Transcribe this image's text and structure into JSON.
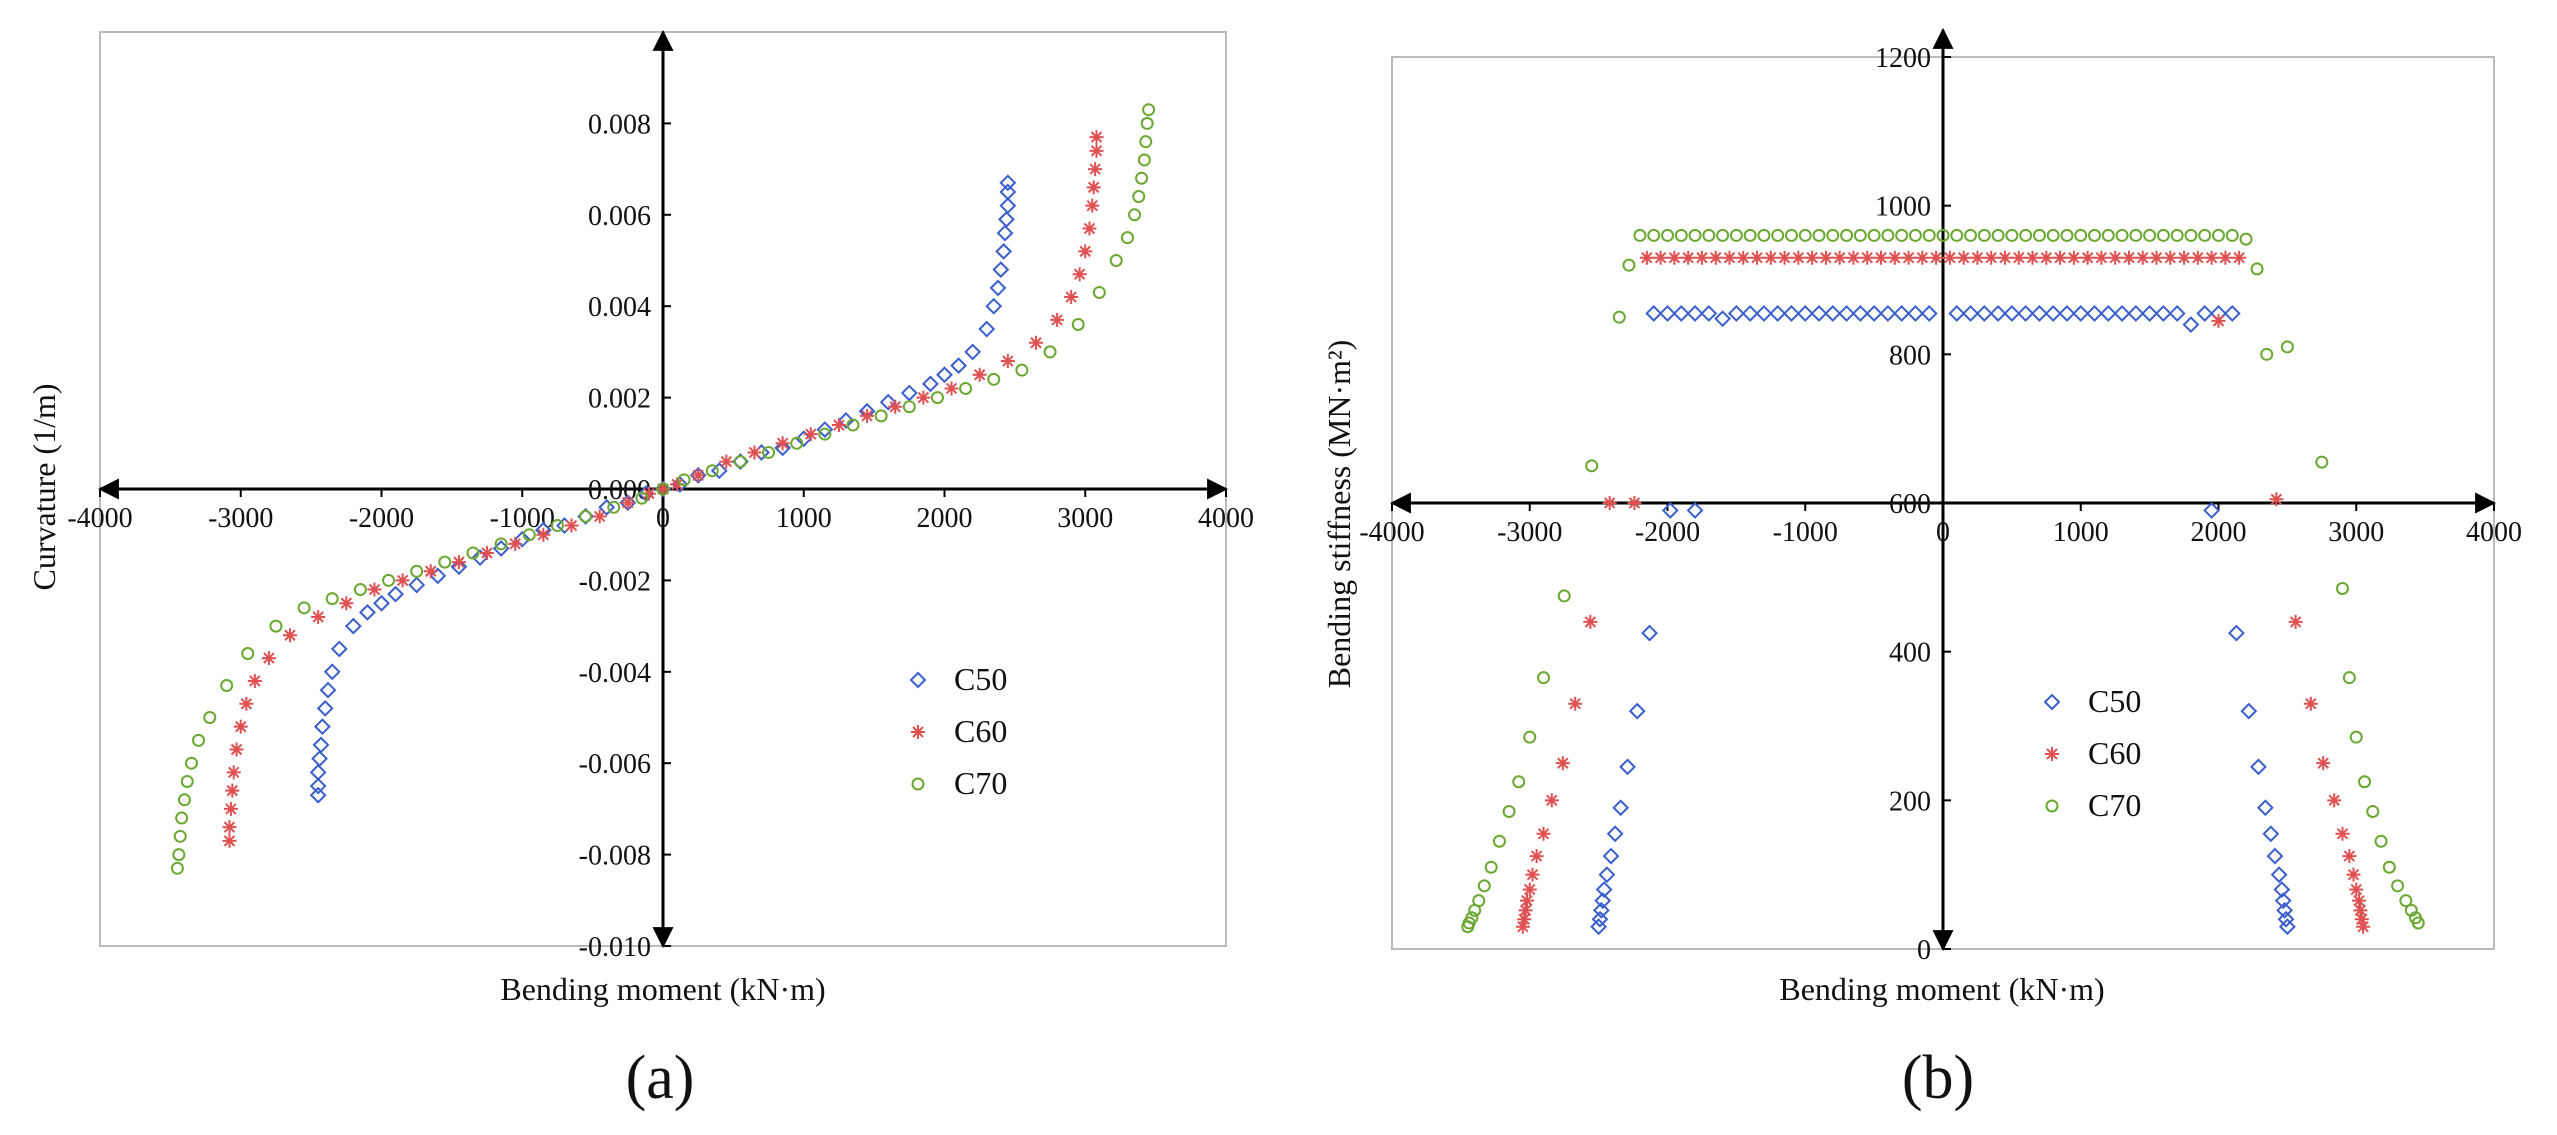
{
  "chart_data": [
    {
      "panel": "(a)",
      "type": "scatter",
      "xlabel": "Bending moment (kN·m)",
      "ylabel": "Curvature (1/m)",
      "xlim": [
        -4000,
        4000
      ],
      "ylim": [
        -0.01,
        0.01
      ],
      "xticks": [
        -4000,
        -3000,
        -2000,
        -1000,
        0,
        1000,
        2000,
        3000,
        4000
      ],
      "xtick_labels": [
        "-4000",
        "-3000",
        "-2000",
        "-1000",
        "0",
        "1000",
        "2000",
        "3000",
        "4000"
      ],
      "yticks": [
        -0.01,
        -0.008,
        -0.006,
        -0.004,
        -0.002,
        0,
        0.002,
        0.004,
        0.006,
        0.008
      ],
      "ytick_labels": [
        "-0.010",
        "-0.008",
        "-0.006",
        "-0.004",
        "-0.002",
        "0.000",
        "0.002",
        "0.004",
        "0.006",
        "0.008"
      ],
      "legend": "center-right",
      "grid": false,
      "series": [
        {
          "name": "C50",
          "marker": "diamond",
          "color": "#3a5fcd",
          "x": [
            -2450,
            -2450,
            -2450,
            -2440,
            -2430,
            -2420,
            -2400,
            -2380,
            -2350,
            -2300,
            -2200,
            -2100,
            -2000,
            -1900,
            -1750,
            -1600,
            -1450,
            -1300,
            -1150,
            -1000,
            -850,
            -700,
            -550,
            -400,
            -250,
            -120,
            0,
            120,
            250,
            400,
            550,
            700,
            850,
            1000,
            1150,
            1300,
            1450,
            1600,
            1750,
            1900,
            2000,
            2100,
            2200,
            2300,
            2350,
            2380,
            2400,
            2420,
            2430,
            2440,
            2450,
            2450,
            2450
          ],
          "y": [
            -0.0067,
            -0.0065,
            -0.0062,
            -0.0059,
            -0.0056,
            -0.0052,
            -0.0048,
            -0.0044,
            -0.004,
            -0.0035,
            -0.003,
            -0.0027,
            -0.0025,
            -0.0023,
            -0.0021,
            -0.0019,
            -0.0017,
            -0.0015,
            -0.0013,
            -0.0011,
            -0.0009,
            -0.0008,
            -0.0006,
            -0.0004,
            -0.0003,
            -0.0001,
            0.0,
            0.0001,
            0.0003,
            0.0004,
            0.0006,
            0.0008,
            0.0009,
            0.0011,
            0.0013,
            0.0015,
            0.0017,
            0.0019,
            0.0021,
            0.0023,
            0.0025,
            0.0027,
            0.003,
            0.0035,
            0.004,
            0.0044,
            0.0048,
            0.0052,
            0.0056,
            0.0059,
            0.0062,
            0.0065,
            0.0067
          ]
        },
        {
          "name": "C60",
          "marker": "asterisk",
          "color": "#e05050",
          "x": [
            -3080,
            -3080,
            -3070,
            -3060,
            -3050,
            -3030,
            -3000,
            -2960,
            -2900,
            -2800,
            -2650,
            -2450,
            -2250,
            -2050,
            -1850,
            -1650,
            -1450,
            -1250,
            -1050,
            -850,
            -650,
            -450,
            -250,
            -100,
            0,
            100,
            250,
            450,
            650,
            850,
            1050,
            1250,
            1450,
            1650,
            1850,
            2050,
            2250,
            2450,
            2650,
            2800,
            2900,
            2960,
            3000,
            3030,
            3050,
            3060,
            3070,
            3080,
            3080
          ],
          "y": [
            -0.0077,
            -0.0074,
            -0.007,
            -0.0066,
            -0.0062,
            -0.0057,
            -0.0052,
            -0.0047,
            -0.0042,
            -0.0037,
            -0.0032,
            -0.0028,
            -0.0025,
            -0.0022,
            -0.002,
            -0.0018,
            -0.0016,
            -0.0014,
            -0.0012,
            -0.001,
            -0.0008,
            -0.0006,
            -0.0003,
            -0.0001,
            0.0,
            0.0001,
            0.0003,
            0.0006,
            0.0008,
            0.001,
            0.0012,
            0.0014,
            0.0016,
            0.0018,
            0.002,
            0.0022,
            0.0025,
            0.0028,
            0.0032,
            0.0037,
            0.0042,
            0.0047,
            0.0052,
            0.0057,
            0.0062,
            0.0066,
            0.007,
            0.0074,
            0.0077
          ]
        },
        {
          "name": "C70",
          "marker": "circle",
          "color": "#6aa832",
          "x": [
            -3450,
            -3440,
            -3430,
            -3420,
            -3400,
            -3380,
            -3350,
            -3300,
            -3220,
            -3100,
            -2950,
            -2750,
            -2550,
            -2350,
            -2150,
            -1950,
            -1750,
            -1550,
            -1350,
            -1150,
            -950,
            -750,
            -550,
            -350,
            -150,
            0,
            150,
            350,
            550,
            750,
            950,
            1150,
            1350,
            1550,
            1750,
            1950,
            2150,
            2350,
            2550,
            2750,
            2950,
            3100,
            3220,
            3300,
            3350,
            3380,
            3400,
            3420,
            3430,
            3440,
            3450
          ],
          "y": [
            -0.0083,
            -0.008,
            -0.0076,
            -0.0072,
            -0.0068,
            -0.0064,
            -0.006,
            -0.0055,
            -0.005,
            -0.0043,
            -0.0036,
            -0.003,
            -0.0026,
            -0.0024,
            -0.0022,
            -0.002,
            -0.0018,
            -0.0016,
            -0.0014,
            -0.0012,
            -0.001,
            -0.0008,
            -0.0006,
            -0.0004,
            -0.0002,
            0.0,
            0.0002,
            0.0004,
            0.0006,
            0.0008,
            0.001,
            0.0012,
            0.0014,
            0.0016,
            0.0018,
            0.002,
            0.0022,
            0.0024,
            0.0026,
            0.003,
            0.0036,
            0.0043,
            0.005,
            0.0055,
            0.006,
            0.0064,
            0.0068,
            0.0072,
            0.0076,
            0.008,
            0.0083
          ]
        }
      ]
    },
    {
      "panel": "(b)",
      "type": "scatter",
      "xlabel": "Bending moment (kN·m)",
      "ylabel": "Bending stiffness (MN·m²)",
      "xlim": [
        -4000,
        4000
      ],
      "ylim": [
        0,
        1200
      ],
      "x_axis_at": 600,
      "xticks": [
        -4000,
        -3000,
        -2000,
        -1000,
        0,
        1000,
        2000,
        3000,
        4000
      ],
      "xtick_labels": [
        "-4000",
        "-3000",
        "-2000",
        "-1000",
        "0",
        "1000",
        "2000",
        "3000",
        "4000"
      ],
      "yticks": [
        0,
        200,
        400,
        600,
        800,
        1000,
        1200
      ],
      "ytick_labels": [
        "0",
        "200",
        "400",
        "600",
        "800",
        "1000",
        "1200"
      ],
      "legend": "center-right",
      "grid": false,
      "series": [
        {
          "name": "C50",
          "marker": "diamond",
          "color": "#3a5fcd",
          "x": [
            -2500,
            -2490,
            -2480,
            -2470,
            -2460,
            -2440,
            -2410,
            -2380,
            -2340,
            -2290,
            -2220,
            -2130,
            -1980,
            -1800,
            -2100,
            -2000,
            -1900,
            -1800,
            -1700,
            -1600,
            -1500,
            -1400,
            -1300,
            -1200,
            -1100,
            -1000,
            -900,
            -800,
            -700,
            -600,
            -500,
            -400,
            -300,
            -200,
            -100,
            100,
            200,
            300,
            400,
            500,
            600,
            700,
            800,
            900,
            1000,
            1100,
            1200,
            1300,
            1400,
            1500,
            1600,
            1700,
            1800,
            1900,
            2000,
            2100,
            1950,
            2130,
            2220,
            2290,
            2340,
            2380,
            2410,
            2440,
            2460,
            2470,
            2480,
            2490,
            2500
          ],
          "y": [
            30,
            40,
            52,
            65,
            80,
            100,
            125,
            155,
            190,
            245,
            320,
            425,
            590,
            590,
            855,
            855,
            855,
            855,
            855,
            848,
            855,
            855,
            855,
            855,
            855,
            855,
            855,
            855,
            855,
            855,
            855,
            855,
            855,
            855,
            855,
            855,
            855,
            855,
            855,
            855,
            855,
            855,
            855,
            855,
            855,
            855,
            855,
            855,
            855,
            855,
            855,
            855,
            840,
            855,
            855,
            855,
            590,
            425,
            320,
            245,
            190,
            155,
            125,
            100,
            80,
            65,
            52,
            40,
            30
          ]
        },
        {
          "name": "C60",
          "marker": "asterisk",
          "color": "#e05050",
          "x": [
            -3050,
            -3040,
            -3030,
            -3020,
            -3000,
            -2980,
            -2950,
            -2900,
            -2840,
            -2760,
            -2670,
            -2560,
            -2420,
            -2240,
            -2150,
            -2050,
            -1950,
            -1850,
            -1750,
            -1650,
            -1550,
            -1450,
            -1350,
            -1250,
            -1150,
            -1050,
            -950,
            -850,
            -750,
            -650,
            -550,
            -450,
            -350,
            -250,
            -150,
            -50,
            50,
            150,
            250,
            350,
            450,
            550,
            650,
            750,
            850,
            950,
            1050,
            1150,
            1250,
            1350,
            1450,
            1550,
            1650,
            1750,
            1850,
            1950,
            2050,
            2150,
            2000,
            2420,
            2560,
            2670,
            2760,
            2840,
            2900,
            2950,
            2980,
            3000,
            3020,
            3030,
            3040,
            3050
          ],
          "y": [
            30,
            40,
            52,
            65,
            80,
            100,
            125,
            155,
            200,
            250,
            330,
            440,
            600,
            600,
            930,
            930,
            930,
            930,
            930,
            930,
            930,
            930,
            930,
            930,
            930,
            930,
            930,
            930,
            930,
            930,
            930,
            930,
            930,
            930,
            930,
            930,
            930,
            930,
            930,
            930,
            930,
            930,
            930,
            930,
            930,
            930,
            930,
            930,
            930,
            930,
            930,
            930,
            930,
            930,
            930,
            930,
            930,
            930,
            845,
            605,
            440,
            330,
            250,
            200,
            155,
            125,
            100,
            80,
            65,
            52,
            40,
            30
          ]
        },
        {
          "name": "C70",
          "marker": "circle",
          "color": "#6aa832",
          "x": [
            -3450,
            -3440,
            -3420,
            -3400,
            -3370,
            -3330,
            -3280,
            -3220,
            -3150,
            -3080,
            -3000,
            -2900,
            -2750,
            -2550,
            -2350,
            -2280,
            -2200,
            -2100,
            -2000,
            -1900,
            -1800,
            -1700,
            -1600,
            -1500,
            -1400,
            -1300,
            -1200,
            -1100,
            -1000,
            -900,
            -800,
            -700,
            -600,
            -500,
            -400,
            -300,
            -200,
            -100,
            0,
            100,
            200,
            300,
            400,
            500,
            600,
            700,
            800,
            900,
            1000,
            1100,
            1200,
            1300,
            1400,
            1500,
            1600,
            1700,
            1800,
            1900,
            2000,
            2100,
            2200,
            2280,
            2350,
            2500,
            2750,
            2900,
            2950,
            3000,
            3060,
            3120,
            3180,
            3240,
            3300,
            3360,
            3400,
            3430,
            3450
          ],
          "y": [
            30,
            35,
            42,
            52,
            65,
            85,
            110,
            145,
            185,
            225,
            285,
            365,
            475,
            650,
            850,
            920,
            960,
            960,
            960,
            960,
            960,
            960,
            960,
            960,
            960,
            960,
            960,
            960,
            960,
            960,
            960,
            960,
            960,
            960,
            960,
            960,
            960,
            960,
            960,
            960,
            960,
            960,
            960,
            960,
            960,
            960,
            960,
            960,
            960,
            960,
            960,
            960,
            960,
            960,
            960,
            960,
            960,
            960,
            960,
            960,
            955,
            915,
            800,
            810,
            655,
            485,
            365,
            285,
            225,
            185,
            145,
            110,
            85,
            65,
            52,
            42,
            35
          ]
        }
      ]
    }
  ],
  "captions": {
    "a": "(a)",
    "b": "(b)"
  }
}
